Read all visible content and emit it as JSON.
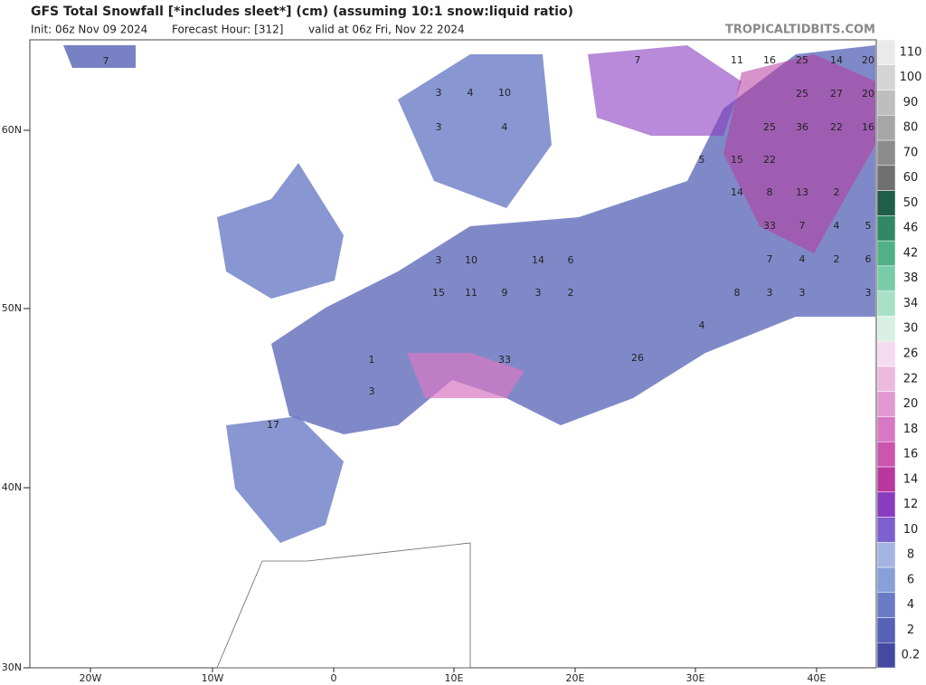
{
  "header": {
    "title": "GFS Total Snowfall [*includes sleet*] (cm) (assuming 10:1 snow:liquid ratio)",
    "init": "Init: 06z Nov 09 2024",
    "forecast_hour": "Forecast Hour: [312]",
    "valid": "valid at 06z Fri, Nov 22 2024",
    "brand": "TROPICALTIDBITS.COM"
  },
  "lat_labels": [
    "60N",
    "50N",
    "40N",
    "30N"
  ],
  "lon_labels": [
    "20W",
    "10W",
    "0",
    "10E",
    "20E",
    "30E",
    "40E"
  ],
  "colorbar": {
    "levels": [
      0.2,
      2,
      4,
      6,
      8,
      10,
      12,
      14,
      16,
      18,
      20,
      22,
      26,
      30,
      34,
      38,
      42,
      46,
      50,
      60,
      70,
      80,
      90,
      100,
      110
    ],
    "colors": [
      "#444aa0",
      "#5562b5",
      "#6a7cc6",
      "#87a0d8",
      "#a4b4e2",
      "#7d5fcf",
      "#8a3cc0",
      "#b8389e",
      "#cc55b0",
      "#d878c2",
      "#e298d0",
      "#ebbade",
      "#f4dcee",
      "#d8f0e4",
      "#a8e0c8",
      "#78ccaa",
      "#50b088",
      "#308868",
      "#1f5e48",
      "#707070",
      "#8c8c8c",
      "#a6a6a6",
      "#bebebe",
      "#d4d4d4",
      "#eaeaea"
    ]
  },
  "map_labels": [
    "7",
    "3",
    "4",
    "10",
    "3",
    "4",
    "7",
    "11",
    "16",
    "25",
    "14",
    "20",
    "25",
    "27",
    "20",
    "25",
    "36",
    "22",
    "16",
    "22",
    "15",
    "5",
    "8",
    "13",
    "2",
    "14",
    "33",
    "7",
    "4",
    "5",
    "7",
    "4",
    "2",
    "6",
    "3",
    "3",
    "3",
    "8",
    "4",
    "26",
    "15",
    "11",
    "9",
    "3",
    "2",
    "33",
    "3",
    "17",
    "14",
    "6",
    "10",
    "3",
    "1"
  ]
}
